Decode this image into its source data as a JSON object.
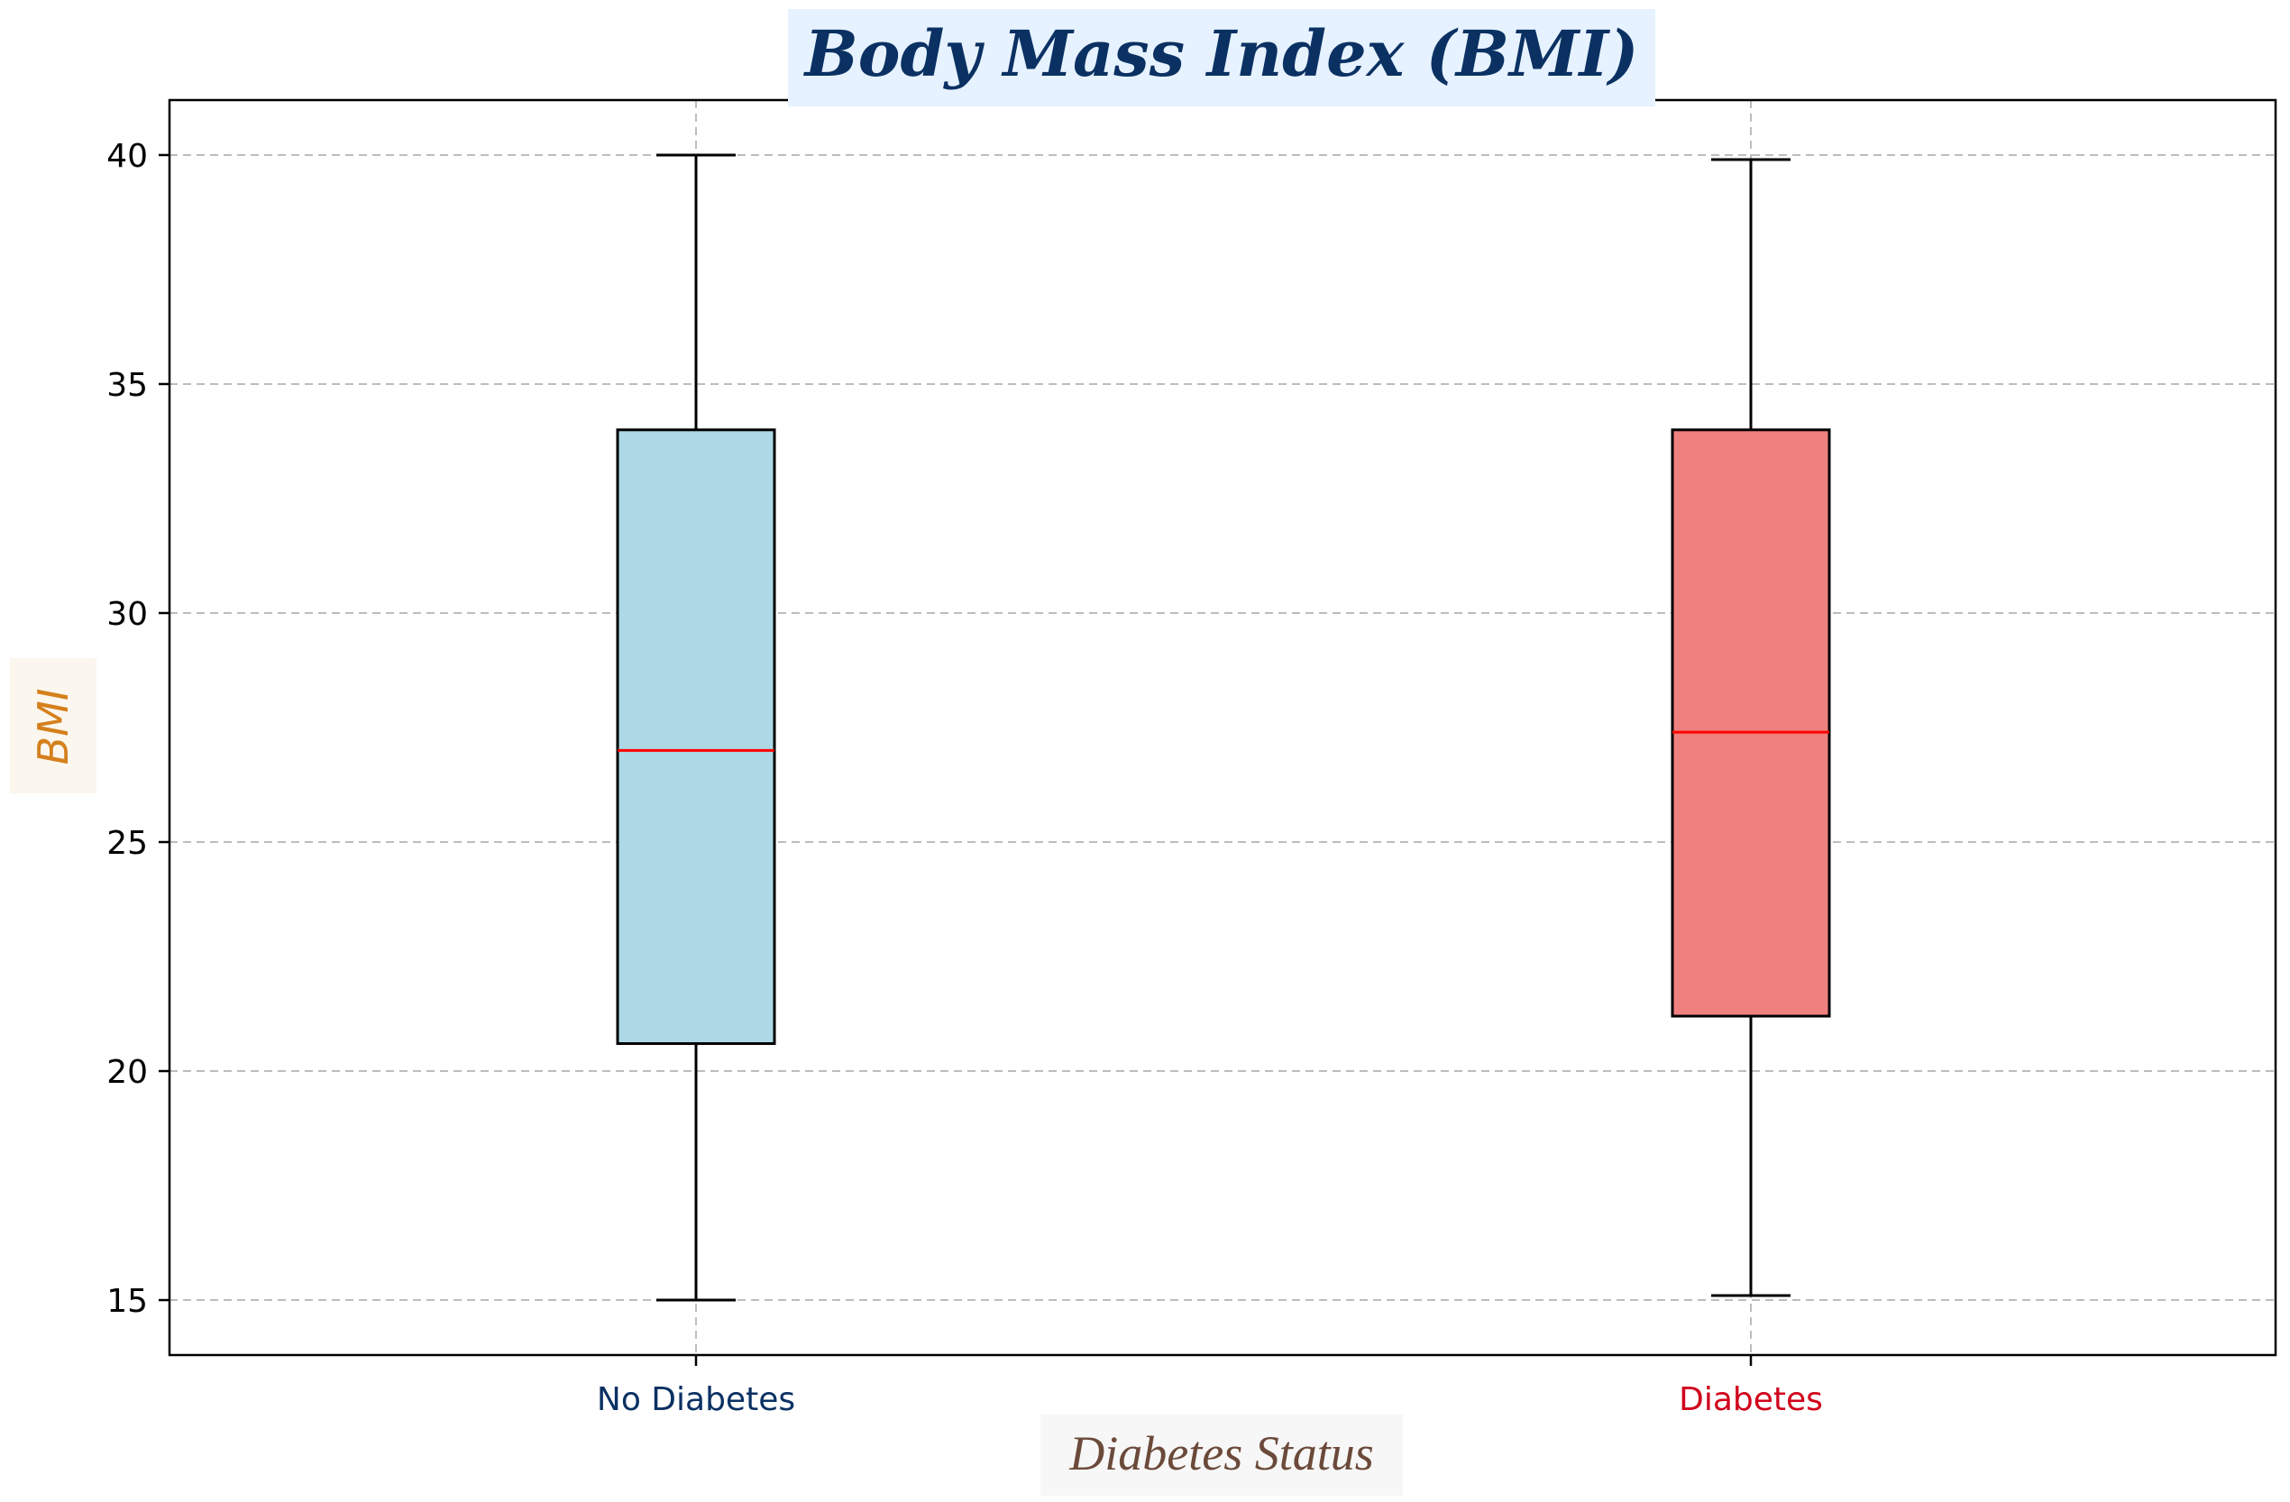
{
  "chart_data": {
    "type": "boxplot",
    "title": "Body Mass Index (BMI)",
    "xlabel": "Diabetes Status",
    "ylabel": "BMI",
    "categories": [
      "No Diabetes",
      "Diabetes"
    ],
    "boxes": [
      {
        "category": "No Diabetes",
        "whisker_low": 15.0,
        "q1": 20.6,
        "median": 27.0,
        "q3": 34.0,
        "whisker_high": 40.0,
        "fill": "#add8e6",
        "label_color": "#0b3163"
      },
      {
        "category": "Diabetes",
        "whisker_low": 15.1,
        "q1": 21.2,
        "median": 27.4,
        "q3": 34.0,
        "whisker_high": 39.9,
        "fill": "#f08080",
        "label_color": "#d0021b"
      }
    ],
    "yticks": [
      15,
      20,
      25,
      30,
      35,
      40
    ],
    "ylim": [
      13.8,
      41.2
    ],
    "grid": true,
    "colors": {
      "title": "#0b3163",
      "title_bg": "#e6f2ff",
      "xlabel": "#6b4a3a",
      "xlabel_bg": "#f7f7f7",
      "ylabel": "#d4801c",
      "ylabel_bg": "#fbf6ee",
      "median": "#ff0000",
      "grid": "#bdbdbd"
    }
  }
}
